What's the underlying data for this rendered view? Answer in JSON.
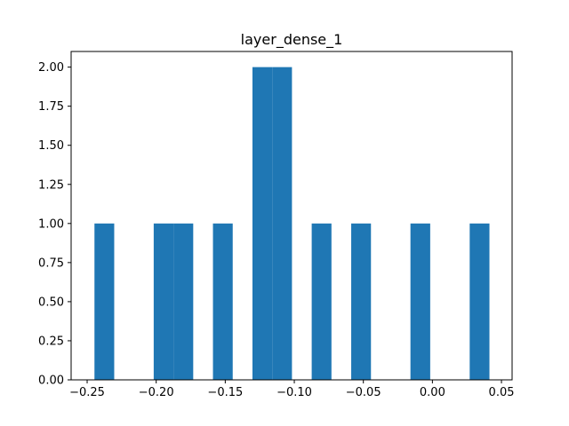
{
  "chart_data": {
    "type": "bar",
    "title": "layer_dense_1",
    "xlabel": "",
    "ylabel": "",
    "xlim": [
      -0.2616,
      0.0577
    ],
    "ylim": [
      0,
      2.1
    ],
    "grid": false,
    "bar_color": "#1f77b4",
    "bins": [
      {
        "x0": -0.2447,
        "x1": -0.2304,
        "value": 1
      },
      {
        "x0": -0.2304,
        "x1": -0.2161,
        "value": 0
      },
      {
        "x0": -0.2161,
        "x1": -0.2018,
        "value": 0
      },
      {
        "x0": -0.2018,
        "x1": -0.1875,
        "value": 1
      },
      {
        "x0": -0.1875,
        "x1": -0.1732,
        "value": 1
      },
      {
        "x0": -0.1732,
        "x1": -0.1589,
        "value": 0
      },
      {
        "x0": -0.1589,
        "x1": -0.1446,
        "value": 1
      },
      {
        "x0": -0.1446,
        "x1": -0.1303,
        "value": 0
      },
      {
        "x0": -0.1303,
        "x1": -0.116,
        "value": 2
      },
      {
        "x0": -0.116,
        "x1": -0.1017,
        "value": 2
      },
      {
        "x0": -0.1017,
        "x1": -0.0874,
        "value": 0
      },
      {
        "x0": -0.0874,
        "x1": -0.0731,
        "value": 1
      },
      {
        "x0": -0.0731,
        "x1": -0.0588,
        "value": 0
      },
      {
        "x0": -0.0588,
        "x1": -0.0445,
        "value": 1
      },
      {
        "x0": -0.0445,
        "x1": -0.0302,
        "value": 0
      },
      {
        "x0": -0.0302,
        "x1": -0.0159,
        "value": 0
      },
      {
        "x0": -0.0159,
        "x1": -0.0016,
        "value": 1
      },
      {
        "x0": -0.0016,
        "x1": 0.0127,
        "value": 0
      },
      {
        "x0": 0.0127,
        "x1": 0.027,
        "value": 0
      },
      {
        "x0": 0.027,
        "x1": 0.0413,
        "value": 1
      }
    ],
    "x_ticks": [
      {
        "value": -0.25,
        "label": "−0.25"
      },
      {
        "value": -0.2,
        "label": "−0.20"
      },
      {
        "value": -0.15,
        "label": "−0.15"
      },
      {
        "value": -0.1,
        "label": "−0.10"
      },
      {
        "value": -0.05,
        "label": "−0.05"
      },
      {
        "value": 0.0,
        "label": "0.00"
      },
      {
        "value": 0.05,
        "label": "0.05"
      }
    ],
    "y_ticks": [
      {
        "value": 0.0,
        "label": "0.00"
      },
      {
        "value": 0.25,
        "label": "0.25"
      },
      {
        "value": 0.5,
        "label": "0.50"
      },
      {
        "value": 0.75,
        "label": "0.75"
      },
      {
        "value": 1.0,
        "label": "1.00"
      },
      {
        "value": 1.25,
        "label": "1.25"
      },
      {
        "value": 1.5,
        "label": "1.50"
      },
      {
        "value": 1.75,
        "label": "1.75"
      },
      {
        "value": 2.0,
        "label": "2.00"
      }
    ]
  }
}
